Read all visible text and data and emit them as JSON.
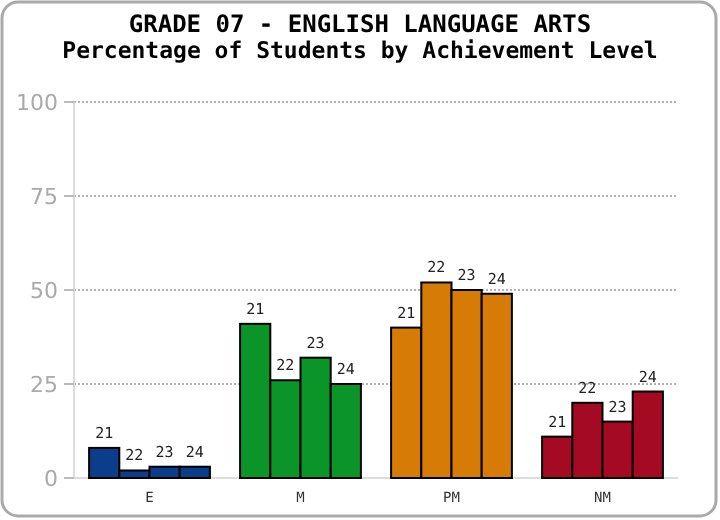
{
  "chart_data": {
    "type": "bar",
    "title": "GRADE 07 - ENGLISH LANGUAGE ARTS",
    "subtitle": "Percentage of Students by Achievement Level",
    "categories": [
      "E",
      "M",
      "PM",
      "NM"
    ],
    "series": [
      {
        "name": "21",
        "colors": [
          "#0a3d8a",
          "#0b9428",
          "#d77b07",
          "#a50a23"
        ],
        "values": [
          8,
          41,
          40,
          11
        ]
      },
      {
        "name": "22",
        "colors": [
          "#0a3d8a",
          "#0b9428",
          "#d77b07",
          "#a50a23"
        ],
        "values": [
          2,
          26,
          52,
          20
        ]
      },
      {
        "name": "23",
        "colors": [
          "#0a3d8a",
          "#0b9428",
          "#d77b07",
          "#a50a23"
        ],
        "values": [
          3,
          32,
          50,
          15
        ]
      },
      {
        "name": "24",
        "colors": [
          "#0a3d8a",
          "#0b9428",
          "#d77b07",
          "#a50a23"
        ],
        "values": [
          3,
          25,
          49,
          23
        ]
      }
    ],
    "ylim": [
      0,
      100
    ],
    "yticks": [
      0,
      25,
      50,
      75,
      100
    ],
    "grid": "y"
  }
}
